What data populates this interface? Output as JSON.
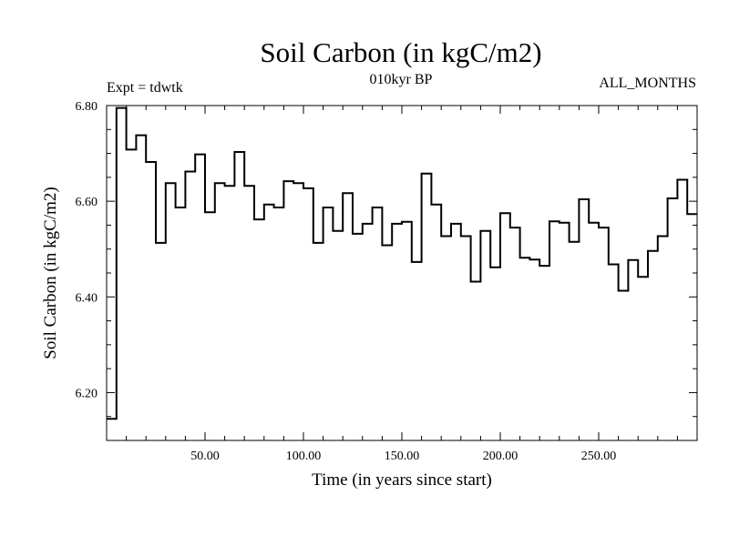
{
  "header": {
    "title": "Soil Carbon (in kgC/m2)",
    "subtitle": "010kyr BP",
    "experiment": "Expt = tdwtk",
    "months": "ALL_MONTHS"
  },
  "chart_data": {
    "type": "line",
    "step": true,
    "title": "Soil Carbon (in kgC/m2)",
    "subtitle": "010kyr BP",
    "xlabel": "Time (in years since start)",
    "ylabel": "Soil Carbon (in kgC/m2)",
    "xlim": [
      0,
      300
    ],
    "ylim": [
      6.1,
      6.8
    ],
    "xticks": [
      50,
      100,
      150,
      200,
      250
    ],
    "xtick_labels": [
      "50.00",
      "100.00",
      "150.00",
      "200.00",
      "250.00"
    ],
    "yticks": [
      6.2,
      6.4,
      6.6,
      6.8
    ],
    "ytick_labels": [
      "6.20",
      "6.40",
      "6.60",
      "6.80"
    ],
    "series": [
      {
        "name": "Soil Carbon",
        "x": [
          0,
          5,
          10,
          15,
          20,
          25,
          30,
          35,
          40,
          45,
          50,
          55,
          60,
          65,
          70,
          75,
          80,
          85,
          90,
          95,
          100,
          105,
          110,
          115,
          120,
          125,
          130,
          135,
          140,
          145,
          150,
          155,
          160,
          165,
          170,
          175,
          180,
          185,
          190,
          195,
          200,
          205,
          210,
          215,
          220,
          225,
          230,
          235,
          240,
          245,
          250,
          255,
          260,
          265,
          270,
          275,
          280,
          285,
          290,
          295
        ],
        "values": [
          6.145,
          6.795,
          6.708,
          6.738,
          6.682,
          6.513,
          6.638,
          6.587,
          6.662,
          6.698,
          6.577,
          6.638,
          6.632,
          6.703,
          6.632,
          6.562,
          6.593,
          6.587,
          6.642,
          6.638,
          6.627,
          6.513,
          6.587,
          6.538,
          6.617,
          6.532,
          6.553,
          6.587,
          6.508,
          6.553,
          6.557,
          6.473,
          6.658,
          6.593,
          6.527,
          6.553,
          6.527,
          6.432,
          6.538,
          6.462,
          6.575,
          6.545,
          6.482,
          6.478,
          6.465,
          6.558,
          6.555,
          6.515,
          6.604,
          6.555,
          6.545,
          6.468,
          6.413,
          6.477,
          6.442,
          6.496,
          6.527,
          6.606,
          6.645,
          6.573
        ]
      }
    ]
  }
}
